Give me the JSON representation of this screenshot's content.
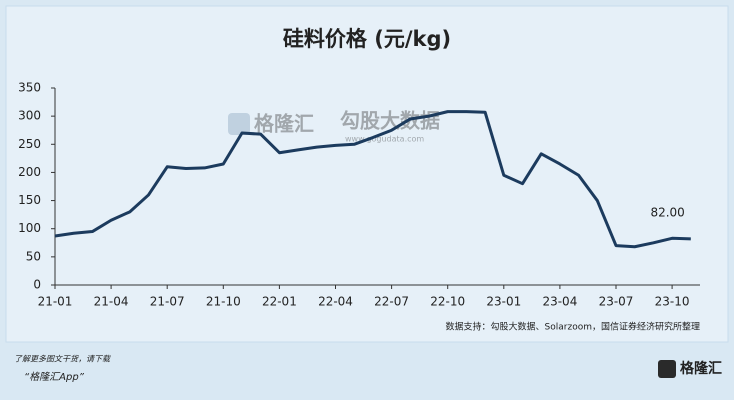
{
  "chart_data": {
    "type": "line",
    "title": "硅料价格 (元/kg)",
    "categories": [
      "21-01",
      null,
      null,
      "21-04",
      null,
      null,
      "21-07",
      null,
      null,
      "21-10",
      null,
      null,
      "22-01",
      null,
      null,
      "22-04",
      null,
      null,
      "22-07",
      null,
      null,
      "22-10",
      null,
      null,
      "23-01",
      null,
      null,
      "23-04",
      null,
      null,
      "23-07",
      null,
      null,
      "23-10",
      null
    ],
    "series": [
      {
        "name": null,
        "color": "#1c3b5e",
        "values": [
          87,
          92,
          95,
          115,
          130,
          160,
          210,
          207,
          208,
          215,
          270,
          268,
          235,
          240,
          245,
          248,
          250,
          262,
          275,
          295,
          300,
          308,
          308,
          307,
          195,
          180,
          233,
          215,
          195,
          150,
          70,
          68,
          75,
          83,
          82
        ],
        "value_labels": [
          null,
          null,
          null,
          null,
          null,
          null,
          null,
          null,
          null,
          null,
          null,
          null,
          null,
          null,
          null,
          null,
          null,
          null,
          null,
          null,
          null,
          null,
          null,
          null,
          null,
          null,
          null,
          null,
          null,
          null,
          null,
          null,
          null,
          null,
          "82.00"
        ]
      }
    ],
    "ylim": [
      0,
      350
    ],
    "yticks": [
      0,
      50,
      100,
      150,
      200,
      250,
      300,
      350
    ],
    "grid": false,
    "source": "数据支持：勾股大数据、Solarzoom，国信证券经济研究所整理"
  },
  "watermark": {
    "brand": "格隆汇",
    "partner": "勾股大数据",
    "url": "www.gogudata.com"
  },
  "footer": {
    "line1": "了解更多图文干货，请下载",
    "line2": "“格隆汇App”",
    "logo": "格隆汇"
  }
}
